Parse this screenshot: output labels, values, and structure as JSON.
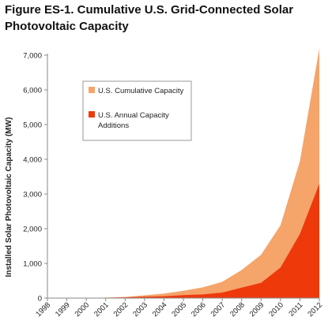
{
  "figure": {
    "title_line1": "Figure ES-1. Cumulative U.S. Grid-Connected Solar",
    "title_line2": "Photovoltaic Capacity"
  },
  "chart_data": {
    "type": "area",
    "title": "Figure ES-1. Cumulative U.S. Grid-Connected Solar Photovoltaic Capacity",
    "xlabel": "",
    "ylabel": "Installed Solar Photovoltaic Capacity (MW)",
    "ylim": [
      0,
      7000
    ],
    "yticks": [
      0,
      1000,
      2000,
      3000,
      4000,
      5000,
      6000,
      7000
    ],
    "ytick_labels": [
      "0",
      "1,000",
      "2,000",
      "3,000",
      "4,000",
      "5,000",
      "6,000",
      "7,000"
    ],
    "categories": [
      "1998",
      "1999",
      "2000",
      "2001",
      "2002",
      "2003",
      "2004",
      "2005",
      "2006",
      "2007",
      "2008",
      "2009",
      "2010",
      "2011",
      "2012"
    ],
    "series": [
      {
        "name": "U.S. Cumulative Capacity",
        "color": "#f5a46a",
        "values": [
          0,
          0,
          5,
          15,
          35,
          80,
          130,
          210,
          310,
          470,
          810,
          1250,
          2100,
          3950,
          7200
        ]
      },
      {
        "name": "U.S. Annual Capacity Additions",
        "color": "#ee3a0b",
        "values": [
          0,
          0,
          3,
          8,
          20,
          40,
          55,
          85,
          105,
          160,
          300,
          440,
          880,
          1850,
          3300
        ]
      }
    ],
    "grid": false,
    "legend_position": "top-left"
  },
  "colors": {
    "cumulative": "#f5a46a",
    "annual": "#ee3a0b",
    "axis": "#8a8a8a",
    "text": "#222222"
  }
}
